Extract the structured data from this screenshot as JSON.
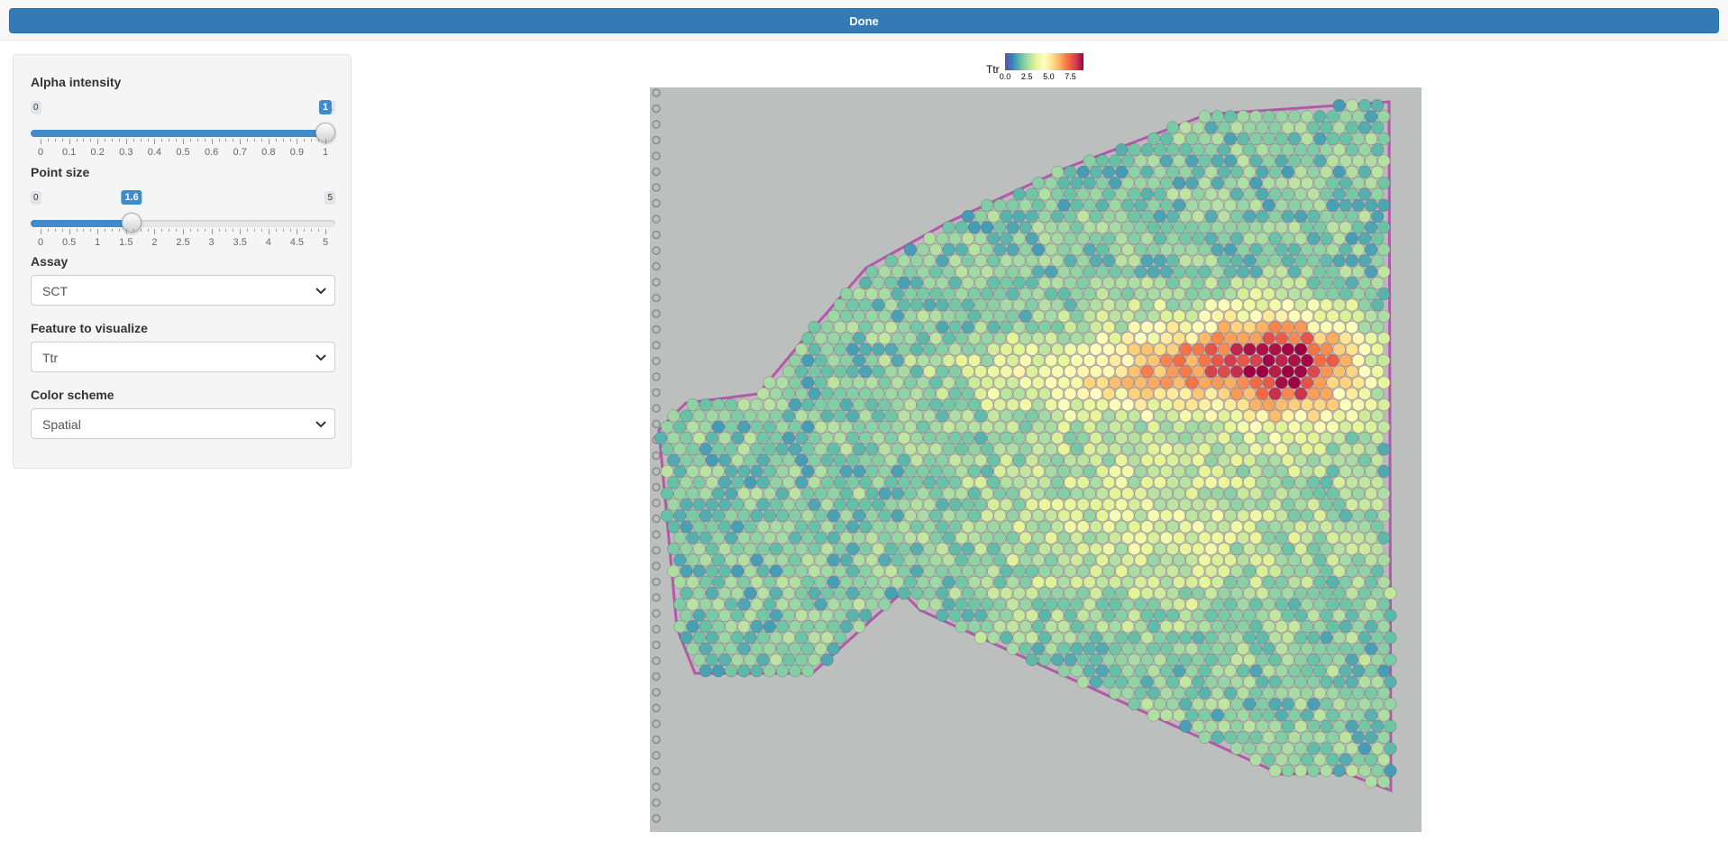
{
  "toolbar": {
    "done_label": "Done"
  },
  "sidebar": {
    "alpha": {
      "label": "Alpha intensity",
      "min_label": "0",
      "max_label": "1",
      "value_label": "1",
      "min": 0,
      "max": 1,
      "value": 1,
      "ticks": [
        "0",
        "0.1",
        "0.2",
        "0.3",
        "0.4",
        "0.5",
        "0.6",
        "0.7",
        "0.8",
        "0.9",
        "1"
      ]
    },
    "point_size": {
      "label": "Point size",
      "min_label": "0",
      "max_label": "5",
      "value_label": "1.6",
      "min": 0,
      "max": 5,
      "value": 1.6,
      "ticks": [
        "0",
        "0.5",
        "1",
        "1.5",
        "2",
        "2.5",
        "3",
        "3.5",
        "4",
        "4.5",
        "5"
      ]
    },
    "assay": {
      "label": "Assay",
      "value": "SCT"
    },
    "feature": {
      "label": "Feature to visualize",
      "value": "Ttr"
    },
    "color_scheme": {
      "label": "Color scheme",
      "value": "Spatial"
    }
  },
  "chart_data": {
    "type": "heatmap",
    "legend": {
      "title": "Ttr",
      "ticks": [
        "0.0",
        "2.5",
        "5.0",
        "7.5"
      ],
      "range": [
        0,
        9
      ],
      "colors": [
        "#5e4fa2",
        "#3288bd",
        "#66c2a5",
        "#abdda4",
        "#e6f598",
        "#ffffbf",
        "#fee08b",
        "#fdae61",
        "#f46d43",
        "#d53e4f",
        "#9e0142"
      ]
    },
    "background": "#bdbfbf",
    "tissue_edge_color": "#b05aa8"
  }
}
